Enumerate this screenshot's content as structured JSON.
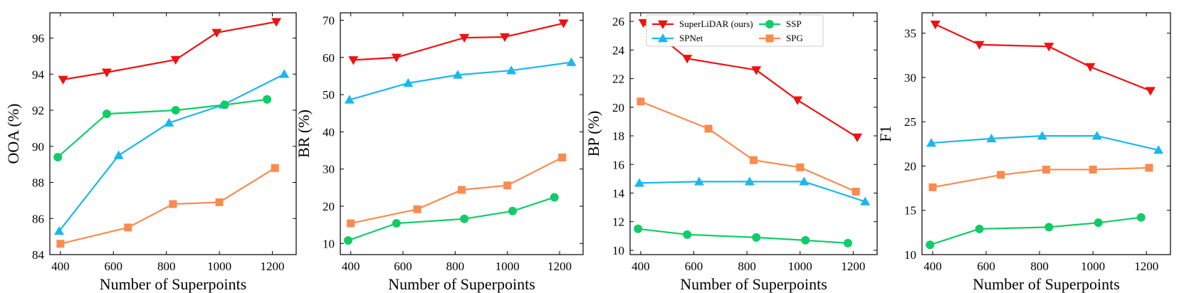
{
  "chart_data": [
    {
      "type": "line",
      "ylabel": "OOA (%)",
      "xlabel": "Number of Superpoints",
      "xlim": [
        360,
        1290
      ],
      "ylim": [
        84,
        97.4
      ],
      "xticks": [
        400,
        600,
        800,
        1000,
        1200
      ],
      "yticks": [
        84,
        86,
        88,
        90,
        92,
        94,
        96
      ],
      "legend": false,
      "series": [
        {
          "name": "SuperLiDAR (ours)",
          "color": "#ee1111",
          "marker": "triangle-down",
          "x": [
            410,
            575,
            835,
            990,
            1215
          ],
          "y": [
            93.7,
            94.1,
            94.8,
            96.3,
            96.9
          ]
        },
        {
          "name": "SPNet",
          "color": "#1ab7f0",
          "marker": "triangle-up",
          "x": [
            395,
            620,
            810,
            1015,
            1245
          ],
          "y": [
            85.3,
            89.5,
            91.3,
            92.3,
            94.0
          ]
        },
        {
          "name": "SSP",
          "color": "#11cc66",
          "marker": "circle",
          "x": [
            390,
            575,
            835,
            1020,
            1180
          ],
          "y": [
            89.4,
            91.8,
            92.0,
            92.3,
            92.6
          ]
        },
        {
          "name": "SPG",
          "color": "#fa8b4e",
          "marker": "square",
          "x": [
            400,
            655,
            825,
            1000,
            1210
          ],
          "y": [
            84.6,
            85.5,
            86.8,
            86.9,
            88.8
          ]
        }
      ]
    },
    {
      "type": "line",
      "ylabel": "BR (%)",
      "xlabel": "Number of Superpoints",
      "xlim": [
        360,
        1290
      ],
      "ylim": [
        7,
        72
      ],
      "xticks": [
        400,
        600,
        800,
        1000,
        1200
      ],
      "yticks": [
        10,
        20,
        30,
        40,
        50,
        60,
        70
      ],
      "legend": false,
      "series": [
        {
          "name": "SuperLiDAR (ours)",
          "color": "#ee1111",
          "marker": "triangle-down",
          "x": [
            410,
            575,
            835,
            990,
            1215
          ],
          "y": [
            59.3,
            60.0,
            65.3,
            65.5,
            69.2
          ]
        },
        {
          "name": "SPNet",
          "color": "#1ab7f0",
          "marker": "triangle-up",
          "x": [
            395,
            620,
            810,
            1015,
            1245
          ],
          "y": [
            48.6,
            53.1,
            55.3,
            56.5,
            58.7
          ]
        },
        {
          "name": "SSP",
          "color": "#11cc66",
          "marker": "circle",
          "x": [
            390,
            575,
            835,
            1020,
            1180
          ],
          "y": [
            10.8,
            15.4,
            16.6,
            18.7,
            22.4
          ]
        },
        {
          "name": "SPG",
          "color": "#fa8b4e",
          "marker": "square",
          "x": [
            400,
            655,
            825,
            1000,
            1210
          ],
          "y": [
            15.4,
            19.2,
            24.4,
            25.6,
            33.1
          ]
        }
      ]
    },
    {
      "type": "line",
      "ylabel": "BP (%)",
      "xlabel": "Number of Superpoints",
      "xlim": [
        360,
        1290
      ],
      "ylim": [
        9.7,
        26.6
      ],
      "xticks": [
        400,
        600,
        800,
        1000,
        1200
      ],
      "yticks": [
        10,
        12,
        14,
        16,
        18,
        20,
        22,
        24,
        26
      ],
      "legend": true,
      "legend_position": "top-right",
      "series": [
        {
          "name": "SuperLiDAR (ours)",
          "color": "#ee1111",
          "marker": "triangle-down",
          "x": [
            410,
            575,
            835,
            990,
            1215
          ],
          "y": [
            25.9,
            23.4,
            22.6,
            20.5,
            17.9
          ]
        },
        {
          "name": "SPNet",
          "color": "#1ab7f0",
          "marker": "triangle-up",
          "x": [
            395,
            620,
            810,
            1015,
            1245
          ],
          "y": [
            14.7,
            14.8,
            14.8,
            14.8,
            13.4
          ]
        },
        {
          "name": "SSP",
          "color": "#11cc66",
          "marker": "circle",
          "x": [
            390,
            575,
            835,
            1020,
            1180
          ],
          "y": [
            11.5,
            11.1,
            10.9,
            10.7,
            10.5
          ]
        },
        {
          "name": "SPG",
          "color": "#fa8b4e",
          "marker": "square",
          "x": [
            400,
            655,
            825,
            1000,
            1210
          ],
          "y": [
            20.4,
            18.5,
            16.3,
            15.8,
            14.1
          ]
        }
      ]
    },
    {
      "type": "line",
      "ylabel": "F1",
      "xlabel": "Number of Superpoints",
      "xlim": [
        360,
        1290
      ],
      "ylim": [
        10,
        37.3
      ],
      "xticks": [
        400,
        600,
        800,
        1000,
        1200
      ],
      "yticks": [
        10,
        15,
        20,
        25,
        30,
        35
      ],
      "legend": false,
      "series": [
        {
          "name": "SuperLiDAR (ours)",
          "color": "#ee1111",
          "marker": "triangle-down",
          "x": [
            410,
            575,
            835,
            990,
            1215
          ],
          "y": [
            36.0,
            33.7,
            33.5,
            31.2,
            28.5
          ]
        },
        {
          "name": "SPNet",
          "color": "#1ab7f0",
          "marker": "triangle-up",
          "x": [
            395,
            620,
            810,
            1015,
            1245
          ],
          "y": [
            22.6,
            23.1,
            23.4,
            23.4,
            21.8
          ]
        },
        {
          "name": "SSP",
          "color": "#11cc66",
          "marker": "circle",
          "x": [
            390,
            575,
            835,
            1020,
            1180
          ],
          "y": [
            11.1,
            12.9,
            13.1,
            13.6,
            14.2
          ]
        },
        {
          "name": "SPG",
          "color": "#fa8b4e",
          "marker": "square",
          "x": [
            400,
            655,
            825,
            1000,
            1210
          ],
          "y": [
            17.6,
            19.0,
            19.6,
            19.6,
            19.8
          ]
        }
      ]
    }
  ]
}
